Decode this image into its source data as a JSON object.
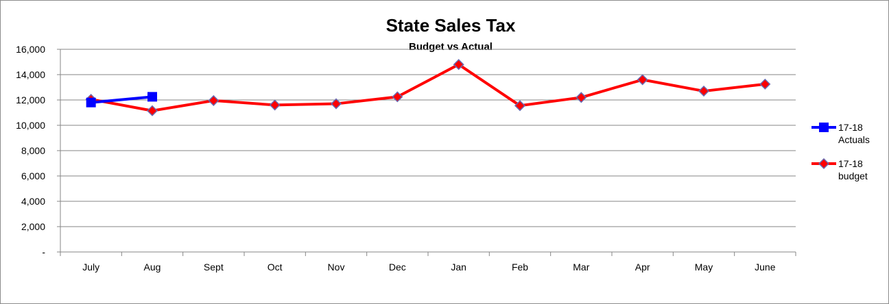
{
  "chart_data": {
    "type": "line",
    "title": "State Sales Tax",
    "subtitle": "Budget vs Actual",
    "categories": [
      "July",
      "Aug",
      "Sept",
      "Oct",
      "Nov",
      "Dec",
      "Jan",
      "Feb",
      "Mar",
      "Apr",
      "May",
      "June"
    ],
    "ylim": [
      0,
      16000
    ],
    "yticks": [
      0,
      2000,
      4000,
      6000,
      8000,
      10000,
      12000,
      14000,
      16000
    ],
    "ytick_labels": [
      "-",
      "2,000",
      "4,000",
      "6,000",
      "8,000",
      "10,000",
      "12,000",
      "14,000",
      "16,000"
    ],
    "grid": true,
    "legend_position": "right",
    "series": [
      {
        "name_lines": [
          "17-18",
          "Actuals"
        ],
        "color": "#0000ff",
        "marker": "square",
        "values": [
          11800,
          12250,
          null,
          null,
          null,
          null,
          null,
          null,
          null,
          null,
          null,
          null
        ]
      },
      {
        "name_lines": [
          "17-18",
          "budget"
        ],
        "color": "#ff0000",
        "marker_fill": "#ff0000",
        "marker_edge": "#6a6ab0",
        "marker": "diamond",
        "values": [
          12050,
          11150,
          11950,
          11600,
          11700,
          12250,
          14800,
          11550,
          12200,
          13600,
          12700,
          13250
        ]
      }
    ]
  }
}
